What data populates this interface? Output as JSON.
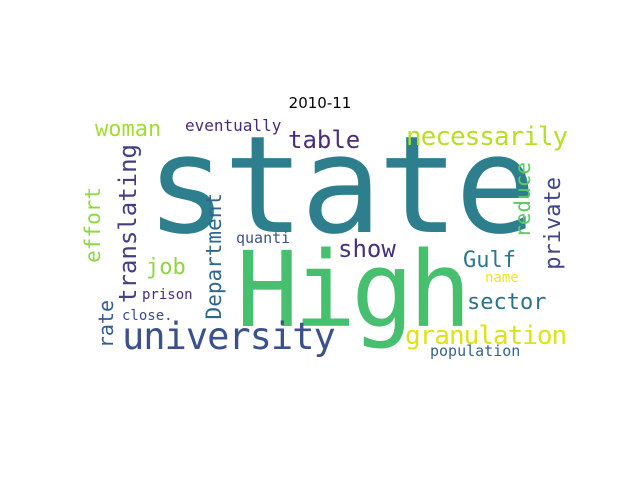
{
  "title": "2010-11",
  "words": [
    {
      "text": "state",
      "color": "#2e7f8e"
    },
    {
      "text": "High",
      "color": "#46c06f"
    },
    {
      "text": "university",
      "color": "#3b518b"
    },
    {
      "text": "necessarily",
      "color": "#b8de29"
    },
    {
      "text": "granulation",
      "color": "#dde318"
    },
    {
      "text": "woman",
      "color": "#a5db36"
    },
    {
      "text": "eventually",
      "color": "#482878"
    },
    {
      "text": "table",
      "color": "#472d7b"
    },
    {
      "text": "show",
      "color": "#46307e"
    },
    {
      "text": "Gulf",
      "color": "#2a788e"
    },
    {
      "text": "sector",
      "color": "#2c728e"
    },
    {
      "text": "job",
      "color": "#8ed645"
    },
    {
      "text": "quanti",
      "color": "#3b528b"
    },
    {
      "text": "prison",
      "color": "#4b2a7a"
    },
    {
      "text": "close.",
      "color": "#3e4a89"
    },
    {
      "text": "name",
      "color": "#f2e51d"
    },
    {
      "text": "population",
      "color": "#33638d"
    },
    {
      "text": "effort",
      "color": "#8fd744"
    },
    {
      "text": "rate",
      "color": "#365c8d"
    },
    {
      "text": "translating",
      "color": "#433e85"
    },
    {
      "text": "Department",
      "color": "#31678e"
    },
    {
      "text": "reduce",
      "color": "#5ec962"
    },
    {
      "text": "private",
      "color": "#414487"
    }
  ]
}
